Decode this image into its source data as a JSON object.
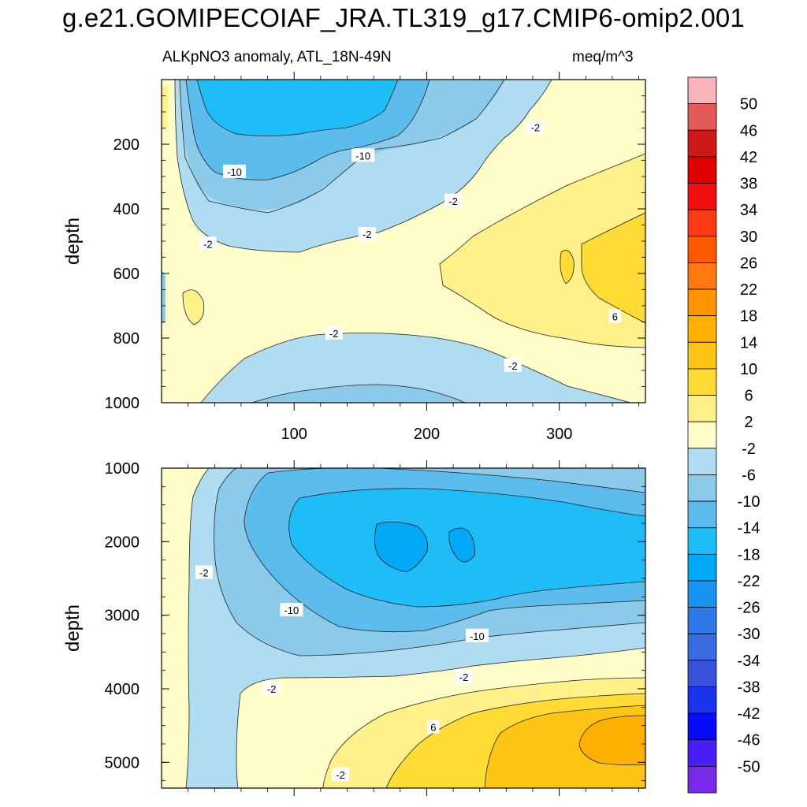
{
  "page": {
    "title": "g.e21.GOMIPECOIAF_JRA.TL319_g17.CMIP6-omip2.001",
    "subtitle_left": "ALKpNO3 anomaly, ATL_18N-49N",
    "subtitle_right": "meq/m^3"
  },
  "chart_data": {
    "type": "heatmap",
    "variable": "ALKpNO3 anomaly",
    "units": "meq/m^3",
    "region": "ATL_18N-49N",
    "x_range": [
      0,
      365
    ],
    "colorbar": {
      "levels": [
        "50",
        "46",
        "42",
        "38",
        "34",
        "30",
        "26",
        "22",
        "18",
        "14",
        "10",
        "6",
        "2",
        "-2",
        "-6",
        "-10",
        "-14",
        "-18",
        "-22",
        "-26",
        "-30",
        "-34",
        "-38",
        "-42",
        "-46",
        "-50"
      ],
      "colors": [
        "#f8b4b8",
        "#e35a58",
        "#cf1818",
        "#e00000",
        "#f20e0e",
        "#ff3a14",
        "#ff5a00",
        "#ff7a10",
        "#ff9400",
        "#ffb000",
        "#ffc514",
        "#ffdb36",
        "#fff08a",
        "#fffdc8",
        "#b0dcf2",
        "#8ccaeb",
        "#5cbcee",
        "#1ebdf8",
        "#00a8f5",
        "#1a94f2",
        "#2e78e8",
        "#3a6ae0",
        "#3852db",
        "#1a34ee",
        "#0a0afa",
        "#4a1ef8",
        "#7a2ae8"
      ]
    },
    "panels": [
      {
        "name": "upper",
        "ylabel": "depth",
        "yticks": [
          "200",
          "400",
          "600",
          "800",
          "1000"
        ],
        "ytick_values": [
          200,
          400,
          600,
          800,
          1000
        ],
        "ylim": [
          0,
          1000
        ],
        "xticks": [
          "100",
          "200",
          "300"
        ],
        "xtick_values": [
          100,
          200,
          300
        ],
        "contour_labels": [
          {
            "text": "-10",
            "x": 152,
            "y": 235
          },
          {
            "text": "-10",
            "x": 55,
            "y": 285
          },
          {
            "text": "-2",
            "x": 282,
            "y": 148
          },
          {
            "text": "-2",
            "x": 220,
            "y": 375
          },
          {
            "text": "-2",
            "x": 155,
            "y": 478
          },
          {
            "text": "-2",
            "x": 35,
            "y": 508
          },
          {
            "text": "6",
            "x": 342,
            "y": 733
          },
          {
            "text": "-2",
            "x": 130,
            "y": 785
          },
          {
            "text": "-2",
            "x": 265,
            "y": 885
          }
        ]
      },
      {
        "name": "lower",
        "ylabel": "depth",
        "yticks": [
          "1000",
          "2000",
          "3000",
          "4000",
          "5000"
        ],
        "ytick_values": [
          1000,
          2000,
          3000,
          4000,
          5000
        ],
        "ylim": [
          1000,
          5350
        ],
        "xticks": [],
        "xtick_values": [
          100,
          200,
          300
        ],
        "contour_labels": [
          {
            "text": "-2",
            "x": 32,
            "y": 2420
          },
          {
            "text": "-10",
            "x": 98,
            "y": 2930
          },
          {
            "text": "-10",
            "x": 238,
            "y": 3280
          },
          {
            "text": "-2",
            "x": 83,
            "y": 4000
          },
          {
            "text": "-2",
            "x": 228,
            "y": 3840
          },
          {
            "text": "6",
            "x": 205,
            "y": 4520
          },
          {
            "text": "-2",
            "x": 135,
            "y": 5170
          }
        ]
      }
    ]
  }
}
